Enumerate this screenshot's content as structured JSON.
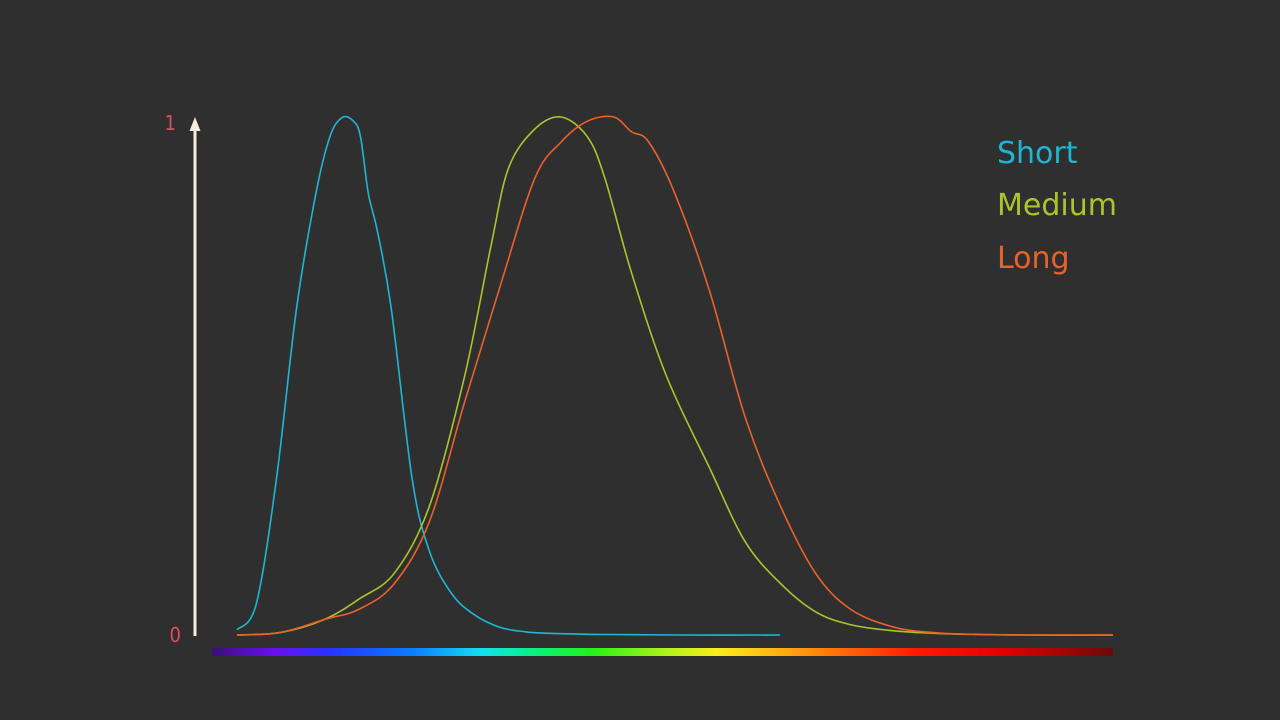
{
  "colors": {
    "background": "#2f2f30",
    "axis": "#f3edd9",
    "tick_labels": "#e64a63",
    "short": "#1fb6d4",
    "medium": "#a9c52b",
    "long": "#e9622a"
  },
  "chart_data": {
    "type": "line",
    "title": "",
    "xlabel": "",
    "ylabel": "",
    "ylim": [
      0,
      1
    ],
    "xlim": [
      0,
      1
    ],
    "x_axis": "visible-spectrum color bar (violet to dark red), no tick labels",
    "y_ticks": [
      {
        "value": 1,
        "label": "1"
      },
      {
        "value": 0,
        "label": "0"
      }
    ],
    "legend": {
      "position": "top-right",
      "entries": [
        "Short",
        "Medium",
        "Long"
      ]
    },
    "grid": false,
    "series": [
      {
        "name": "Short",
        "color": "#1fb6d4",
        "x": [
          0.0,
          0.022,
          0.045,
          0.068,
          0.09,
          0.106,
          0.12,
          0.133,
          0.141,
          0.15,
          0.16,
          0.176,
          0.2,
          0.22,
          0.245,
          0.27,
          0.3,
          0.33,
          0.36,
          0.42,
          0.5,
          0.62
        ],
        "y": [
          0.01,
          0.06,
          0.3,
          0.63,
          0.85,
          0.96,
          0.997,
          0.99,
          0.96,
          0.85,
          0.78,
          0.63,
          0.3,
          0.16,
          0.08,
          0.04,
          0.015,
          0.006,
          0.003,
          0.001,
          0.0,
          0.0
        ]
      },
      {
        "name": "Medium",
        "color": "#a9c52b",
        "x": [
          0.0,
          0.05,
          0.1,
          0.14,
          0.18,
          0.22,
          0.26,
          0.29,
          0.31,
          0.34,
          0.37,
          0.4,
          0.42,
          0.45,
          0.49,
          0.54,
          0.58,
          0.62,
          0.66,
          0.7,
          0.75,
          0.8,
          0.85,
          0.9,
          1.0
        ],
        "y": [
          0.0,
          0.005,
          0.03,
          0.07,
          0.12,
          0.25,
          0.5,
          0.75,
          0.9,
          0.975,
          0.998,
          0.96,
          0.88,
          0.7,
          0.5,
          0.32,
          0.18,
          0.1,
          0.045,
          0.02,
          0.008,
          0.003,
          0.001,
          0.0,
          0.0
        ]
      },
      {
        "name": "Long",
        "color": "#e9622a",
        "x": [
          0.0,
          0.05,
          0.1,
          0.14,
          0.18,
          0.22,
          0.26,
          0.3,
          0.34,
          0.37,
          0.4,
          0.43,
          0.45,
          0.47,
          0.5,
          0.54,
          0.58,
          0.62,
          0.66,
          0.7,
          0.75,
          0.8,
          0.85,
          0.9,
          1.0
        ],
        "y": [
          0.0,
          0.005,
          0.03,
          0.05,
          0.1,
          0.22,
          0.45,
          0.67,
          0.88,
          0.95,
          0.99,
          0.998,
          0.97,
          0.95,
          0.85,
          0.66,
          0.42,
          0.25,
          0.12,
          0.05,
          0.015,
          0.004,
          0.001,
          0.0,
          0.0
        ]
      }
    ]
  }
}
